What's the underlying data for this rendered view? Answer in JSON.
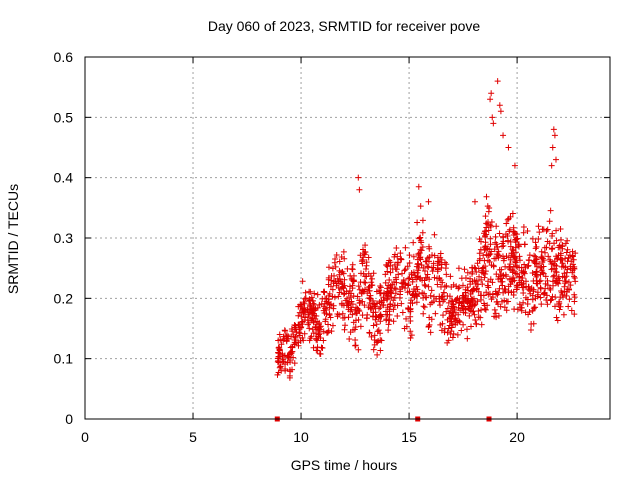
{
  "chart_data": {
    "type": "scatter",
    "title": "Day 060 of 2023, SRMTID for receiver pove",
    "xlabel": "GPS time / hours",
    "ylabel": "SRMTID / TECUs",
    "xlim": [
      0,
      24.3
    ],
    "ylim": [
      0,
      0.6
    ],
    "xticks": [
      0,
      5,
      10,
      15,
      20
    ],
    "yticks": [
      0,
      0.1,
      0.2,
      0.3,
      0.4,
      0.5,
      0.6
    ],
    "xtick_labels": [
      "0",
      "5",
      "10",
      "15",
      "20"
    ],
    "ytick_labels": [
      "0",
      "0.1",
      "0.2",
      "0.3",
      "0.4",
      "0.5",
      "0.6"
    ],
    "grid": true,
    "legend": "none",
    "marker": "+",
    "color": "#e00000",
    "zero_markers_x": [
      8.9,
      15.4,
      18.7
    ],
    "envelope": [
      [
        8.9,
        0.07,
        0.16
      ],
      [
        9.2,
        0.06,
        0.16
      ],
      [
        9.5,
        0.06,
        0.15
      ],
      [
        9.8,
        0.09,
        0.2
      ],
      [
        10.0,
        0.12,
        0.24
      ],
      [
        10.3,
        0.13,
        0.23
      ],
      [
        10.6,
        0.11,
        0.22
      ],
      [
        10.9,
        0.08,
        0.2
      ],
      [
        11.2,
        0.12,
        0.25
      ],
      [
        11.5,
        0.15,
        0.29
      ],
      [
        11.8,
        0.14,
        0.3
      ],
      [
        12.2,
        0.12,
        0.27
      ],
      [
        12.6,
        0.1,
        0.26
      ],
      [
        12.9,
        0.14,
        0.31
      ],
      [
        13.3,
        0.11,
        0.28
      ],
      [
        13.6,
        0.09,
        0.24
      ],
      [
        14.0,
        0.13,
        0.28
      ],
      [
        14.4,
        0.15,
        0.31
      ],
      [
        14.8,
        0.14,
        0.3
      ],
      [
        15.1,
        0.11,
        0.29
      ],
      [
        15.5,
        0.17,
        0.36
      ],
      [
        15.9,
        0.13,
        0.33
      ],
      [
        16.3,
        0.16,
        0.31
      ],
      [
        16.6,
        0.12,
        0.28
      ],
      [
        17.0,
        0.1,
        0.24
      ],
      [
        17.4,
        0.14,
        0.26
      ],
      [
        17.8,
        0.12,
        0.27
      ],
      [
        18.2,
        0.13,
        0.3
      ],
      [
        18.6,
        0.17,
        0.38
      ],
      [
        19.0,
        0.15,
        0.33
      ],
      [
        19.4,
        0.16,
        0.34
      ],
      [
        19.8,
        0.18,
        0.36
      ],
      [
        20.2,
        0.15,
        0.33
      ],
      [
        20.6,
        0.14,
        0.32
      ],
      [
        21.0,
        0.16,
        0.33
      ],
      [
        21.4,
        0.17,
        0.36
      ],
      [
        21.8,
        0.15,
        0.34
      ],
      [
        22.2,
        0.14,
        0.32
      ],
      [
        22.5,
        0.16,
        0.3
      ],
      [
        22.7,
        0.17,
        0.29
      ]
    ],
    "outliers": [
      [
        12.65,
        0.4
      ],
      [
        12.7,
        0.38
      ],
      [
        15.45,
        0.385
      ],
      [
        15.9,
        0.36
      ],
      [
        18.05,
        0.36
      ],
      [
        18.75,
        0.53
      ],
      [
        18.8,
        0.54
      ],
      [
        18.85,
        0.5
      ],
      [
        18.9,
        0.49
      ],
      [
        19.1,
        0.56
      ],
      [
        19.2,
        0.52
      ],
      [
        19.25,
        0.51
      ],
      [
        19.35,
        0.47
      ],
      [
        19.6,
        0.45
      ],
      [
        19.9,
        0.42
      ],
      [
        21.7,
        0.48
      ],
      [
        21.75,
        0.47
      ],
      [
        21.65,
        0.45
      ],
      [
        21.8,
        0.43
      ],
      [
        21.6,
        0.42
      ]
    ]
  }
}
